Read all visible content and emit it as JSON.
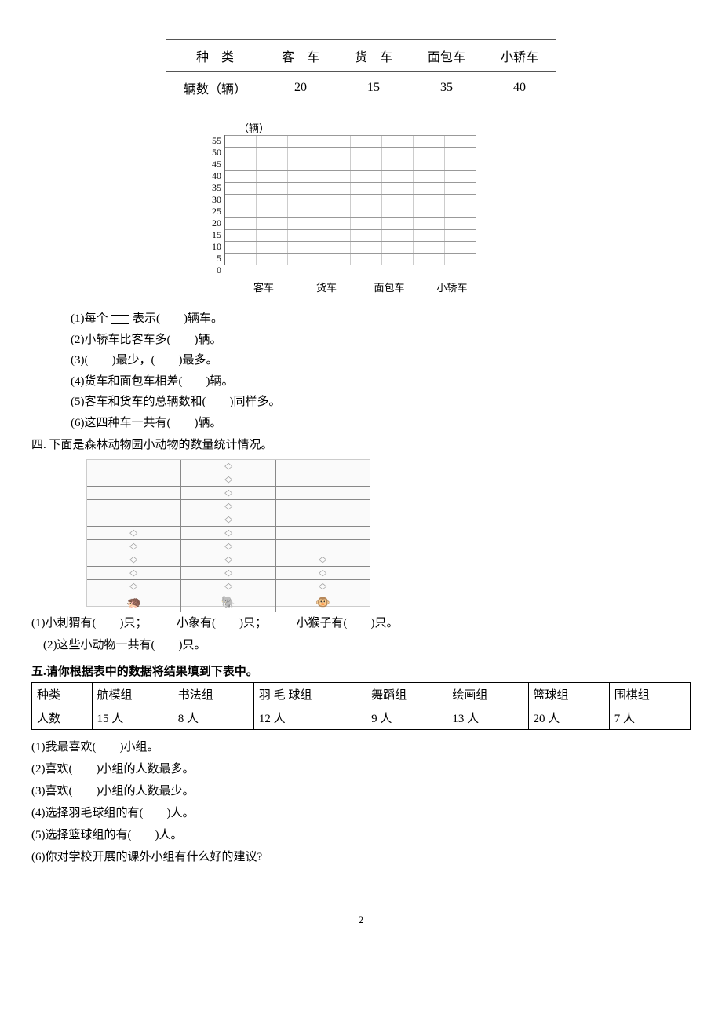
{
  "vehicleTable": {
    "headers": [
      "种　类",
      "客　车",
      "货　车",
      "面包车",
      "小轿车"
    ],
    "rowLabel": "辆数（辆）",
    "values": [
      "20",
      "15",
      "35",
      "40"
    ]
  },
  "chart": {
    "unitLabel": "（辆）",
    "yTicks": [
      "55",
      "50",
      "45",
      "40",
      "35",
      "30",
      "25",
      "20",
      "15",
      "10",
      "5",
      "0"
    ],
    "xLabels": [
      "客车",
      "货车",
      "面包车",
      "小轿车"
    ],
    "rows": 11,
    "cols": 8
  },
  "q3": {
    "items": [
      {
        "pre": "(1)每个 ",
        "post": " 表示(　　)辆车。",
        "box": true
      },
      {
        "text": "(2)小轿车比客车多(　　)辆。"
      },
      {
        "text": "(3)(　　)最少，(　　)最多。"
      },
      {
        "text": "(4)货车和面包车相差(　　)辆。"
      },
      {
        "text": "(5)客车和货车的总辆数和(　　)同样多。"
      },
      {
        "text": "(6)这四种车一共有(　　)辆。"
      }
    ]
  },
  "section4": {
    "title": "四. 下面是森林动物园小动物的数量统计情况。",
    "cols": 3,
    "fillRows": [
      [
        0,
        1,
        0
      ],
      [
        0,
        1,
        0
      ],
      [
        0,
        1,
        0
      ],
      [
        0,
        1,
        0
      ],
      [
        0,
        1,
        0
      ],
      [
        1,
        1,
        0
      ],
      [
        1,
        1,
        0
      ],
      [
        1,
        1,
        1
      ],
      [
        1,
        1,
        1
      ],
      [
        1,
        1,
        1
      ]
    ],
    "footIcons": [
      "🦔",
      "🐘",
      "🐵"
    ],
    "q": [
      "(1)小刺猬有(　　)只；　　　小象有(　　)只；　　　小猴子有(　　)只。",
      "　(2)这些小动物一共有(　　)只。"
    ]
  },
  "section5": {
    "title": "五.请你根据表中的数据将结果填到下表中。",
    "headers": [
      "种类",
      "航模组",
      "书法组",
      "羽 毛 球组",
      "舞蹈组",
      "绘画组",
      "篮球组",
      "围棋组"
    ],
    "rowLabel": "人数",
    "values": [
      "15 人",
      "8 人",
      "12 人",
      "9 人",
      "13 人",
      "20 人",
      "7 人"
    ],
    "q": [
      "(1)我最喜欢(　　)小组。",
      "(2)喜欢(　　)小组的人数最多。",
      "(3)喜欢(　　)小组的人数最少。",
      "(4)选择羽毛球组的有(　　)人。",
      "(5)选择篮球组的有(　　)人。",
      "(6)你对学校开展的课外小组有什么好的建议?"
    ]
  },
  "pageNum": "2"
}
